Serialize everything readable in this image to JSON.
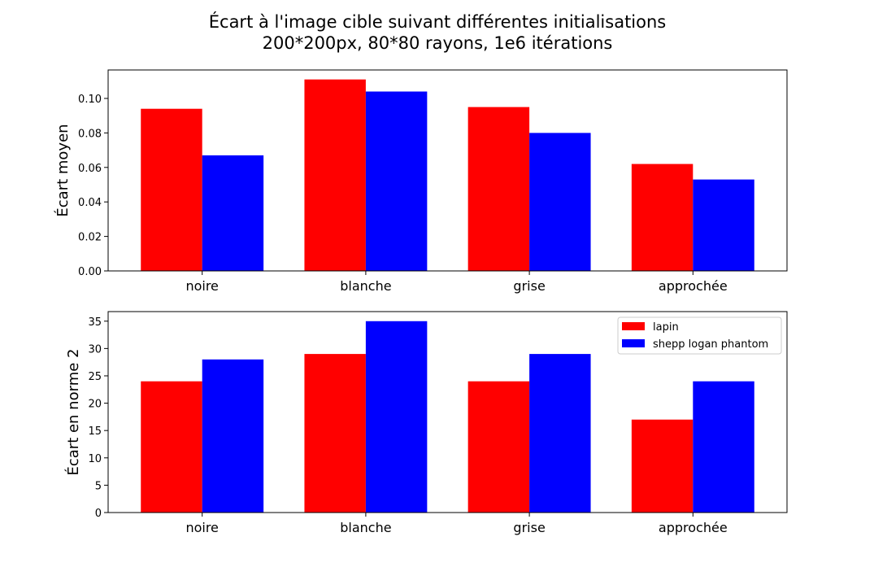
{
  "figure": {
    "title_line1": "Écart à l'image cible suivant différentes initialisations",
    "title_line2": "200*200px, 80*80 rayons, 1e6 itérations"
  },
  "chart_data": [
    {
      "type": "bar",
      "categories": [
        "noire",
        "blanche",
        "grise",
        "approchée"
      ],
      "series": [
        {
          "name": "lapin",
          "color": "#ff0000",
          "values": [
            0.094,
            0.111,
            0.095,
            0.062
          ]
        },
        {
          "name": "shepp logan phantom",
          "color": "#0000ff",
          "values": [
            0.067,
            0.104,
            0.08,
            0.053
          ]
        }
      ],
      "xlabel": "",
      "ylabel": "Écart moyen",
      "ylim": [
        0,
        0.1165
      ],
      "yticks": [
        0.0,
        0.02,
        0.04,
        0.06,
        0.08,
        0.1
      ],
      "ytick_labels": [
        "0.00",
        "0.02",
        "0.04",
        "0.06",
        "0.08",
        "0.10"
      ],
      "legend": false,
      "grid": false
    },
    {
      "type": "bar",
      "categories": [
        "noire",
        "blanche",
        "grise",
        "approchée"
      ],
      "series": [
        {
          "name": "lapin",
          "color": "#ff0000",
          "values": [
            24,
            29,
            24,
            17
          ]
        },
        {
          "name": "shepp logan phantom",
          "color": "#0000ff",
          "values": [
            28,
            35,
            29,
            24
          ]
        }
      ],
      "xlabel": "",
      "ylabel": "Écart en norme 2",
      "ylim": [
        0,
        36.75
      ],
      "yticks": [
        0,
        5,
        10,
        15,
        20,
        25,
        30,
        35
      ],
      "ytick_labels": [
        "0",
        "5",
        "10",
        "15",
        "20",
        "25",
        "30",
        "35"
      ],
      "legend": true,
      "legend_placement": "top-right",
      "grid": false
    }
  ]
}
